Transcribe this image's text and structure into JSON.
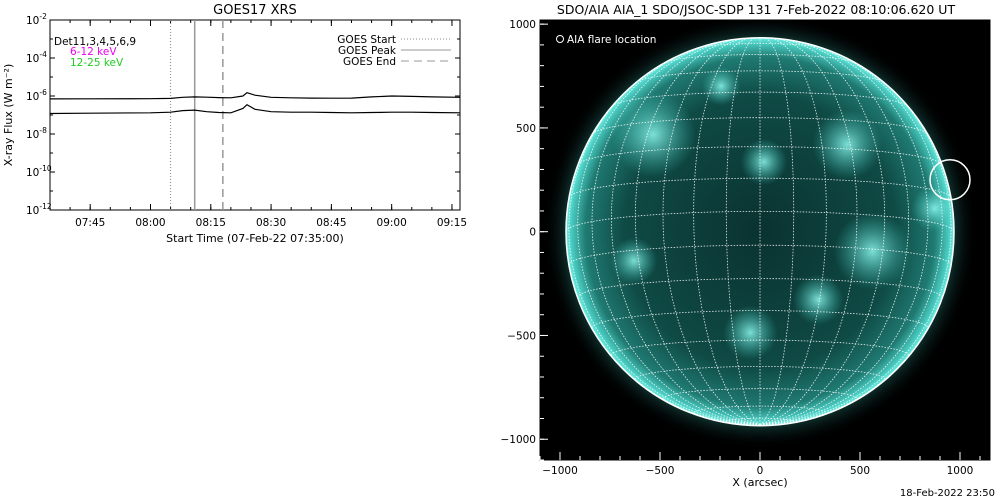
{
  "goes_panel": {
    "title": "GOES17 XRS",
    "ylabel": "X-ray Flux (W m⁻²)",
    "xlabel": "Start Time (07-Feb-22 07:35:00)",
    "annot": {
      "det": "Det11,3,4,5,6,9",
      "band_low": "6-12 keV",
      "band_high": "12-25 keV"
    },
    "legend": [
      {
        "label": "GOES Start",
        "style": "dotted"
      },
      {
        "label": "GOES Peak",
        "style": "solid"
      },
      {
        "label": "GOES End",
        "style": "dashed"
      }
    ],
    "xticks": [
      "07:45",
      "08:00",
      "08:15",
      "08:30",
      "08:45",
      "09:00",
      "09:15"
    ],
    "yticks": [
      {
        "base": "10",
        "exp": "-2"
      },
      {
        "base": "10",
        "exp": "-4"
      },
      {
        "base": "10",
        "exp": "-6"
      },
      {
        "base": "10",
        "exp": "-8"
      },
      {
        "base": "10",
        "exp": "-10"
      },
      {
        "base": "10",
        "exp": "-12"
      }
    ]
  },
  "aia_panel": {
    "title": "SDO/AIA AIA_1 SDO/JSOC-SDP 131  7-Feb-2022 08:10:06.620 UT",
    "legend_label": "AIA flare location",
    "xlabel": "X (arcsec)",
    "xticks": [
      "−1000",
      "−500",
      "0",
      "500",
      "1000"
    ],
    "yticks": [
      "1000",
      "500",
      "0",
      "−500",
      "−1000"
    ],
    "footer": "18-Feb-2022 23:50",
    "colors": {
      "background": "#000000",
      "disk": "#0c3a37",
      "glow": "#5ee9df",
      "grid": "#ffffff"
    }
  },
  "chart_data": [
    {
      "type": "line",
      "title": "GOES17 XRS",
      "xlabel": "Start Time (07-Feb-22 07:35:00)",
      "ylabel": "X-ray Flux (W m⁻²)",
      "y_scale": "log",
      "ylim": [
        1e-12,
        0.01
      ],
      "xlim": [
        "07:35",
        "09:17"
      ],
      "markers": {
        "goes_start": "08:05",
        "goes_peak": "08:11",
        "goes_end": "08:18"
      },
      "series": [
        {
          "name": "",
          "x": [
            "07:35",
            "07:45",
            "08:00",
            "08:05",
            "08:08",
            "08:11",
            "08:14",
            "08:17",
            "08:20",
            "08:23",
            "08:24",
            "08:26",
            "08:30",
            "08:35",
            "08:40",
            "08:45",
            "08:50",
            "08:55",
            "09:00",
            "09:05",
            "09:10",
            "09:17"
          ],
          "y": [
            7e-07,
            7.1e-07,
            7.2e-07,
            7.5e-07,
            8.5e-07,
            9e-07,
            8.6e-07,
            8.2e-07,
            8e-07,
            1e-06,
            1.5e-06,
            1.1e-06,
            8.5e-07,
            8e-07,
            7.8e-07,
            7.7e-07,
            7.8e-07,
            9e-07,
            1e-06,
            9.5e-07,
            9e-07,
            8.5e-07
          ]
        },
        {
          "name": "",
          "x": [
            "07:35",
            "07:45",
            "08:00",
            "08:05",
            "08:08",
            "08:11",
            "08:14",
            "08:17",
            "08:20",
            "08:23",
            "08:24",
            "08:26",
            "08:30",
            "08:35",
            "08:40",
            "08:45",
            "08:50",
            "08:55",
            "09:00",
            "09:05",
            "09:10",
            "09:17"
          ],
          "y": [
            1.2e-07,
            1.25e-07,
            1.3e-07,
            1.4e-07,
            1.7e-07,
            1.8e-07,
            1.5e-07,
            1.35e-07,
            1.3e-07,
            2.2e-07,
            3.5e-07,
            2e-07,
            1.5e-07,
            1.4e-07,
            1.4e-07,
            1.35e-07,
            1.3e-07,
            1.35e-07,
            1.4e-07,
            1.4e-07,
            1.35e-07,
            1.3e-07
          ]
        }
      ]
    },
    {
      "type": "scatter",
      "title": "SDO/AIA AIA_1 SDO/JSOC-SDP 131  7-Feb-2022 08:10:06.620 UT",
      "xlabel": "X (arcsec)",
      "xlim": [
        -1100,
        1150
      ],
      "ylim": [
        -1100,
        1020
      ],
      "series": [
        {
          "name": "AIA flare location",
          "x": [
            950
          ],
          "y": [
            250
          ]
        }
      ]
    }
  ]
}
